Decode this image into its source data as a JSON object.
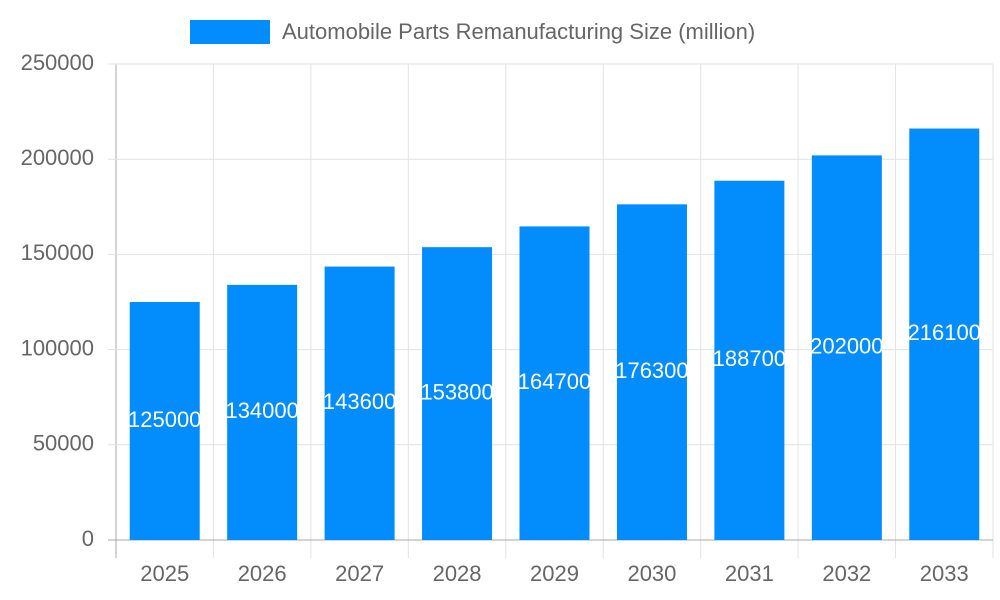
{
  "chart_data": {
    "type": "bar",
    "categories": [
      "2025",
      "2026",
      "2027",
      "2028",
      "2029",
      "2030",
      "2031",
      "2032",
      "2033"
    ],
    "series": [
      {
        "name": "Automobile Parts Remanufacturing Size (million)",
        "color": "#038cfc",
        "values": [
          125000,
          134000,
          143600,
          153800,
          164700,
          176300,
          188700,
          202000,
          216100
        ]
      }
    ],
    "ylim": [
      0,
      250000
    ],
    "yticks": [
      0,
      50000,
      100000,
      150000,
      200000,
      250000
    ],
    "grid": true,
    "legend": "top"
  }
}
